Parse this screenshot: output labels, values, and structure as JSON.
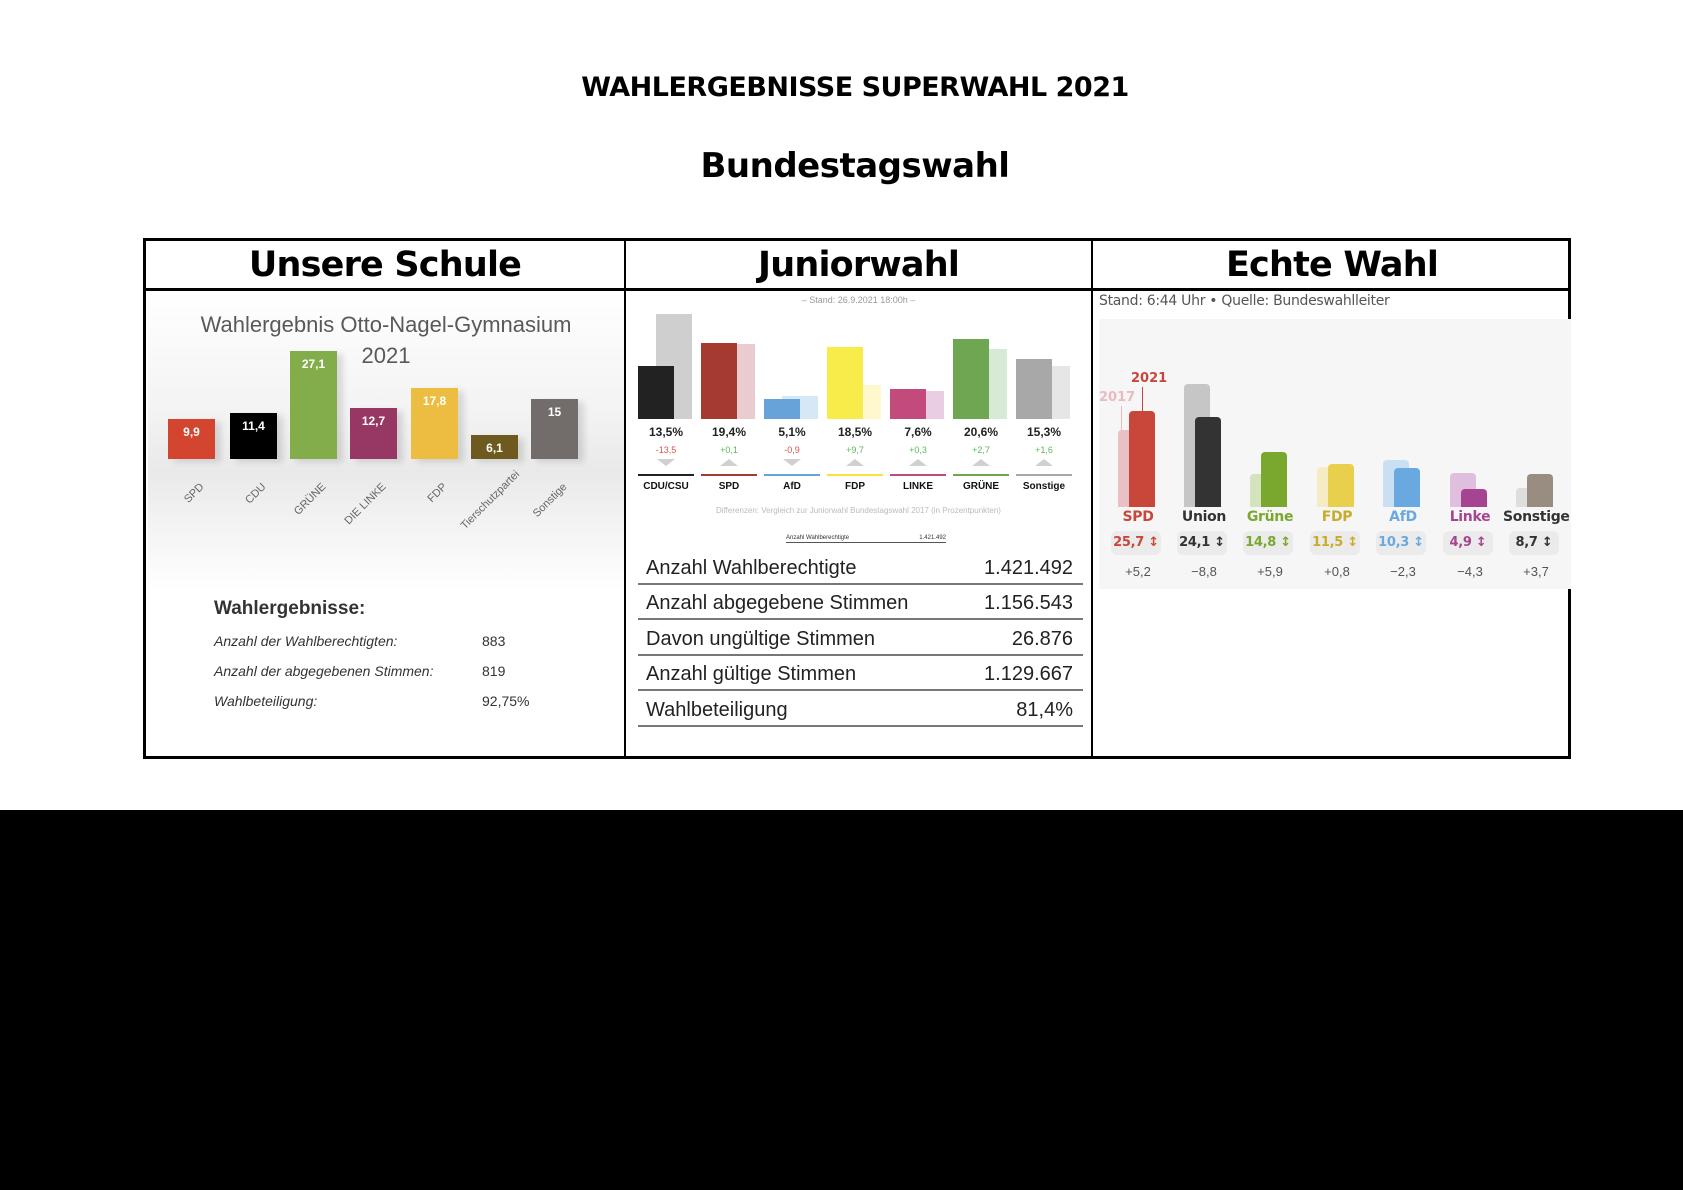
{
  "page": {
    "title": "WAHLERGEBNISSE SUPERWAHL 2021",
    "subtitle": "Bundestagswahl"
  },
  "columns": [
    {
      "heading": "Unsere Schule"
    },
    {
      "heading": "Juniorwahl"
    },
    {
      "heading": "Echte Wahl"
    }
  ],
  "school": {
    "chart_title_line1": "Wahlergebnis Otto-Nagel-Gymnasium",
    "chart_title_line2": "2021",
    "results_heading": "Wahlergebnisse:",
    "rows": [
      {
        "label": "Anzahl der Wahlberechtigten:",
        "value": "883"
      },
      {
        "label": "Anzahl der abgegebenen Stimmen:",
        "value": "819"
      },
      {
        "label": "Wahlbeteiligung:",
        "value": "92,75%"
      }
    ]
  },
  "junior": {
    "stand": "– Stand: 26.9.2021 18:00h –",
    "note": "Differenzen: Vergleich zur Juniorwahl Bundestagswahl 2017 (in Prozentpunkten)",
    "mini_row": {
      "label": "Anzahl Wahlberechtigte",
      "value": "1.421.492"
    },
    "rows": [
      {
        "label": "Anzahl Wahlberechtigte",
        "value": "1.421.492"
      },
      {
        "label": "Anzahl abgegebene Stimmen",
        "value": "1.156.543"
      },
      {
        "label": "Davon ungültige Stimmen",
        "value": "26.876"
      },
      {
        "label": "Anzahl gültige Stimmen",
        "value": "1.129.667"
      },
      {
        "label": "Wahlbeteiligung",
        "value": "81,4%"
      }
    ]
  },
  "real": {
    "stand": "Stand: 6:44 Uhr • Quelle: Bundeswahlleiter",
    "year_prev": "2017",
    "year_cur": "2021"
  },
  "chart_data": [
    {
      "type": "bar",
      "title": "Wahlergebnis Otto-Nagel-Gymnasium 2021",
      "categories": [
        "SPD",
        "CDU",
        "GRÜNE",
        "DIE LINKE",
        "FDP",
        "Tierschutzpartei",
        "Sonstige"
      ],
      "values": [
        9.9,
        11.4,
        27.1,
        12.7,
        17.8,
        6.1,
        15
      ],
      "labels": [
        "9,9",
        "11,4",
        "27,1",
        "12,7",
        "17,8",
        "6,1",
        "15"
      ],
      "colors": [
        "#d4452f",
        "#000000",
        "#83ad4b",
        "#963863",
        "#ecbd40",
        "#6e5a1e",
        "#726c6a"
      ],
      "xlabel": "",
      "ylabel": "",
      "grid": false
    },
    {
      "type": "bar",
      "title": "Juniorwahl",
      "categories": [
        "CDU/CSU",
        "SPD",
        "AfD",
        "FDP",
        "LINKE",
        "GRÜNE",
        "Sonstige"
      ],
      "series": [
        {
          "name": "2021",
          "values": [
            13.5,
            19.4,
            5.1,
            18.5,
            7.6,
            20.6,
            15.3
          ]
        },
        {
          "name": "2017",
          "values": [
            27.0,
            19.3,
            6.0,
            8.8,
            7.3,
            17.9,
            13.7
          ]
        }
      ],
      "labels": [
        "13,5%",
        "19,4%",
        "5,1%",
        "18,5%",
        "7,6%",
        "20,6%",
        "15,3%"
      ],
      "diffs": [
        "-13,5",
        "+0,1",
        "-0,9",
        "+9,7",
        "+0,3",
        "+2,7",
        "+1,6"
      ],
      "colors": [
        "#222222",
        "#a53a31",
        "#67a3d9",
        "#f8ec4a",
        "#c24b7c",
        "#6ea652",
        "#a8a8a8"
      ],
      "prev_colors": [
        "#cfcfcf",
        "#e8ccd0",
        "#d6e8f6",
        "#fff8cc",
        "#e9cde2",
        "#d7ead6",
        "#e6e6e6"
      ]
    },
    {
      "type": "bar",
      "title": "Echte Wahl",
      "categories": [
        "SPD",
        "Union",
        "Grüne",
        "FDP",
        "AfD",
        "Linke",
        "Sonstige"
      ],
      "series": [
        {
          "name": "2021",
          "values": [
            25.7,
            24.1,
            14.8,
            11.5,
            10.3,
            4.9,
            8.7
          ]
        },
        {
          "name": "2017",
          "values": [
            20.5,
            32.9,
            8.9,
            10.7,
            12.6,
            9.2,
            5.0
          ]
        }
      ],
      "labels": [
        "25,7",
        "24,1",
        "14,8",
        "11,5",
        "10,3",
        "4,9",
        "8,7"
      ],
      "diffs": [
        "+5,2",
        "−8,8",
        "+5,9",
        "+0,8",
        "−2,3",
        "−4,3",
        "+3,7"
      ],
      "colors": [
        "#c9463b",
        "#333333",
        "#7aa72d",
        "#e9d04c",
        "#6aa9e0",
        "#a74492",
        "#988d80"
      ],
      "prev_colors": [
        "#e9c0c3",
        "#c6c6c6",
        "#d2e3bd",
        "#f5ecc4",
        "#c9e0f2",
        "#dfbede",
        "#dededa"
      ],
      "text_colors": [
        "#c9463b",
        "#333333",
        "#7aa72d",
        "#c9ab2a",
        "#6aa9e0",
        "#a74492",
        "#333333"
      ]
    }
  ]
}
